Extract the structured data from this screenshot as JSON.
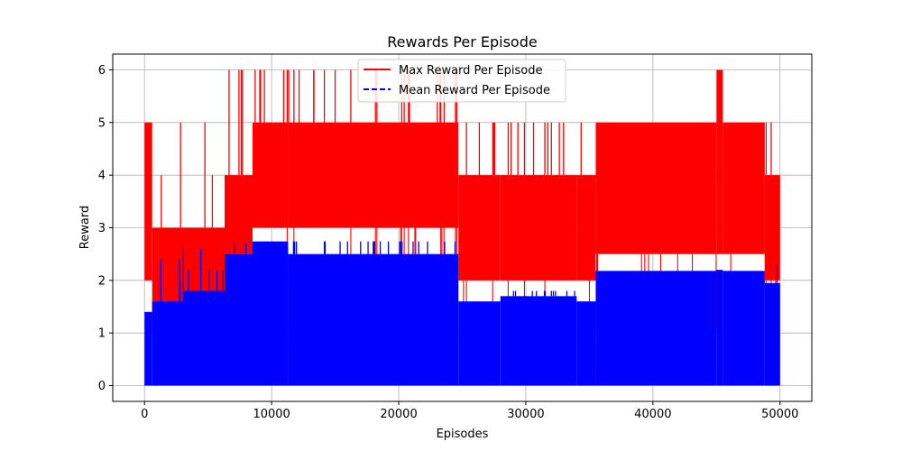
{
  "chart_data": {
    "type": "line",
    "title": "Rewards Per Episode",
    "xlabel": "Episodes",
    "ylabel": "Reward",
    "xlim": [
      -2500,
      52500
    ],
    "ylim": [
      -0.3,
      6.3
    ],
    "xticks": [
      0,
      10000,
      20000,
      30000,
      40000,
      50000
    ],
    "xtick_labels": [
      "0",
      "10000",
      "20000",
      "30000",
      "40000",
      "50000"
    ],
    "yticks": [
      0,
      1,
      2,
      3,
      4,
      5,
      6
    ],
    "ytick_labels": [
      "0",
      "1",
      "2",
      "3",
      "4",
      "5",
      "6"
    ],
    "grid": true,
    "legend_position": "top-center",
    "series": [
      {
        "name": "Max Reward Per Episode",
        "color": "#ff0000",
        "style": "solid",
        "segments": [
          {
            "x": [
              0,
              600
            ],
            "low": 2.0,
            "high": 5.0,
            "spikes": [
              5.0
            ],
            "dips": [
              1.0
            ]
          },
          {
            "x": [
              600,
              3000
            ],
            "low": 1.0,
            "high": 3.0,
            "spikes": [
              4.0,
              5.0
            ],
            "dips": [
              1.0
            ]
          },
          {
            "x": [
              3000,
              6300
            ],
            "low": 1.5,
            "high": 3.0,
            "spikes": [
              4.0,
              5.0,
              6.0
            ],
            "dips": [
              1.0
            ]
          },
          {
            "x": [
              6300,
              8500
            ],
            "low": 2.5,
            "high": 4.0,
            "spikes": [
              5.0,
              6.0
            ],
            "dips": [
              1.0,
              0.0
            ]
          },
          {
            "x": [
              8500,
              11300
            ],
            "low": 3.0,
            "high": 5.0,
            "spikes": [
              6.0
            ],
            "dips": [
              0.0
            ]
          },
          {
            "x": [
              11300,
              24700
            ],
            "low": 3.0,
            "high": 5.0,
            "spikes": [
              6.0
            ],
            "dips": [
              0.0
            ]
          },
          {
            "x": [
              24700,
              28000
            ],
            "low": 2.0,
            "high": 4.0,
            "spikes": [
              5.0
            ],
            "dips": [
              1.0
            ]
          },
          {
            "x": [
              28000,
              34000
            ],
            "low": 2.0,
            "high": 4.0,
            "spikes": [
              5.0
            ],
            "dips": [
              0.0
            ]
          },
          {
            "x": [
              34000,
              35500
            ],
            "low": 2.0,
            "high": 4.0,
            "spikes": [
              5.0
            ],
            "dips": [
              1.0
            ]
          },
          {
            "x": [
              35500,
              45000
            ],
            "low": 2.5,
            "high": 5.0,
            "spikes": [
              5.0
            ],
            "dips": [
              1.0
            ]
          },
          {
            "x": [
              45000,
              45500
            ],
            "low": 2.5,
            "high": 6.0,
            "spikes": [
              6.0
            ],
            "dips": [
              1.0
            ]
          },
          {
            "x": [
              45500,
              48800
            ],
            "low": 2.5,
            "high": 5.0,
            "spikes": [
              5.0
            ],
            "dips": [
              1.0
            ]
          },
          {
            "x": [
              48800,
              50000
            ],
            "low": 2.0,
            "high": 4.0,
            "spikes": [
              5.0
            ],
            "dips": [
              1.0
            ]
          }
        ]
      },
      {
        "name": "Mean Reward Per Episode",
        "color": "#0000ff",
        "style": "dashed",
        "segments": [
          {
            "x": [
              0,
              600
            ],
            "low": 0.0,
            "high": 1.4,
            "spikes": [
              2.4
            ],
            "dips": [
              0.0
            ]
          },
          {
            "x": [
              600,
              3000
            ],
            "low": 0.0,
            "high": 1.6,
            "spikes": [
              2.0,
              2.4
            ],
            "dips": [
              0.0
            ]
          },
          {
            "x": [
              3000,
              6300
            ],
            "low": 0.0,
            "high": 1.8,
            "spikes": [
              2.2,
              2.6
            ],
            "dips": [
              0.0
            ]
          },
          {
            "x": [
              6300,
              8500
            ],
            "low": 0.0,
            "high": 2.5,
            "spikes": [
              2.7
            ],
            "dips": [
              0.0
            ]
          },
          {
            "x": [
              8500,
              11300
            ],
            "low": 0.0,
            "high": 2.74,
            "spikes": [
              2.74
            ],
            "dips": [
              0.0
            ]
          },
          {
            "x": [
              11300,
              24700
            ],
            "low": 0.0,
            "high": 2.5,
            "spikes": [
              2.74
            ],
            "dips": [
              0.0
            ]
          },
          {
            "x": [
              24700,
              28000
            ],
            "low": 0.0,
            "high": 1.6,
            "spikes": [
              1.6
            ],
            "dips": [
              0.0
            ]
          },
          {
            "x": [
              28000,
              34000
            ],
            "low": 0.0,
            "high": 1.7,
            "spikes": [
              1.8
            ],
            "dips": [
              0.0
            ]
          },
          {
            "x": [
              34000,
              35500
            ],
            "low": 0.0,
            "high": 1.6,
            "spikes": [
              1.6
            ],
            "dips": [
              0.0
            ]
          },
          {
            "x": [
              35500,
              45000
            ],
            "low": 0.0,
            "high": 2.18,
            "spikes": [
              2.18
            ],
            "dips": [
              0.0
            ]
          },
          {
            "x": [
              45000,
              45500
            ],
            "low": 0.0,
            "high": 2.2,
            "spikes": [
              2.2
            ],
            "dips": [
              0.0
            ]
          },
          {
            "x": [
              45500,
              48800
            ],
            "low": 0.0,
            "high": 2.18,
            "spikes": [
              2.18
            ],
            "dips": [
              0.0
            ]
          },
          {
            "x": [
              48800,
              50000
            ],
            "low": 0.0,
            "high": 1.95,
            "spikes": [
              2.3
            ],
            "dips": [
              0.0
            ]
          }
        ]
      }
    ]
  }
}
